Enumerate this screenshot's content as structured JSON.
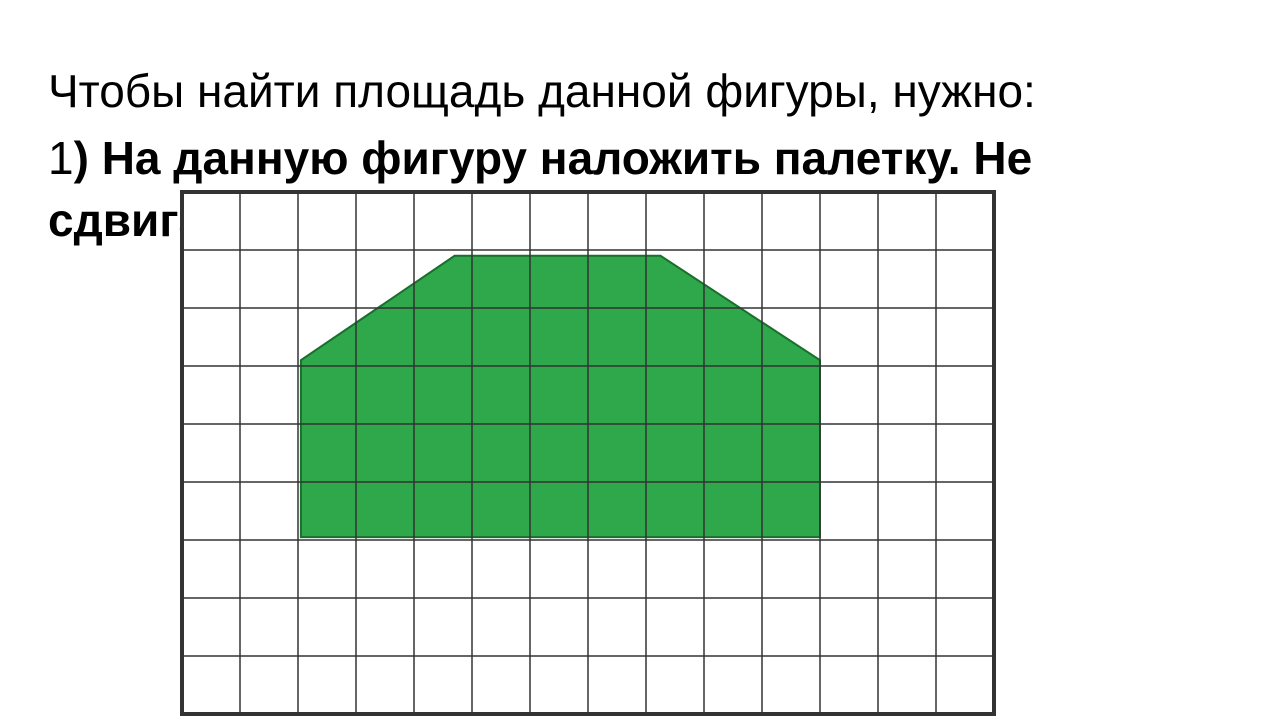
{
  "text": {
    "intro": "Чтобы найти площадь данной фигуры, нужно:",
    "step_num": "1",
    "step_text": ") На данную фигуру наложить палетку. Не сдвигать!"
  },
  "grid": {
    "cols": 14,
    "rows": 9,
    "cell_size": 58,
    "border_width": 4,
    "inner_line_width": 1.5,
    "border_color": "#333333",
    "inner_line_color": "#333333",
    "background_color": "#ffffff"
  },
  "shape": {
    "fill_color": "#2ea84a",
    "stroke_color": "#1a6e2e",
    "stroke_width": 2,
    "points_grid": [
      [
        2.05,
        5.95
      ],
      [
        2.05,
        2.9
      ],
      [
        4.7,
        1.1
      ],
      [
        8.25,
        1.1
      ],
      [
        11.0,
        2.9
      ],
      [
        11.0,
        5.95
      ]
    ]
  }
}
